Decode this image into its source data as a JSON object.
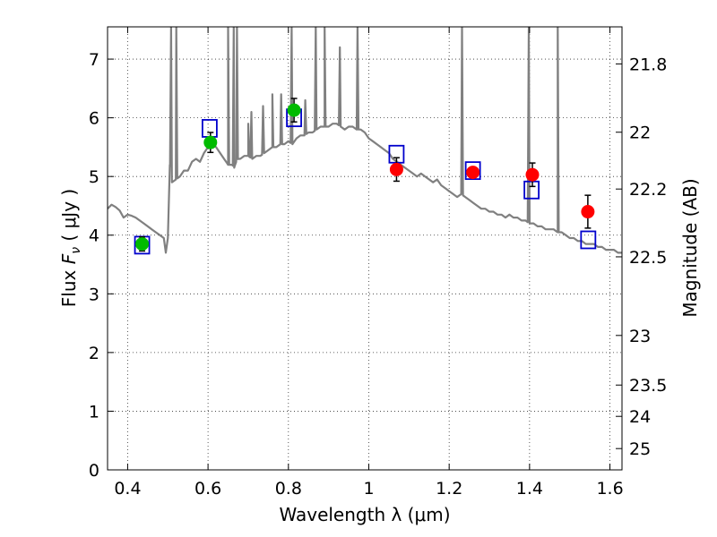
{
  "chart_data": {
    "type": "scatter",
    "xlabel": "Wavelength  λ (μm)",
    "ylabel": "Flux  F_ν  ( μJy )",
    "ylabel_parts": {
      "prefix": "Flux  ",
      "symbol": "F",
      "subscript": "ν",
      "suffix": "  ( μJy )"
    },
    "y2label": "Magnitude (AB)",
    "xlim": [
      0.35,
      1.63
    ],
    "ylim": [
      0,
      7.55
    ],
    "grid": true,
    "x_ticks": [
      0.4,
      0.6,
      0.8,
      1.0,
      1.2,
      1.4,
      1.6
    ],
    "x_tick_labels": [
      "0.4",
      "0.6",
      "0.8",
      "1",
      "1.2",
      "1.4",
      "1.6"
    ],
    "y_ticks": [
      0,
      1,
      2,
      3,
      4,
      5,
      6,
      7
    ],
    "y_tick_labels": [
      "0",
      "1",
      "2",
      "3",
      "4",
      "5",
      "6",
      "7"
    ],
    "y2_ticks": [
      21.8,
      22,
      22.2,
      22.5,
      23,
      23.5,
      24,
      25
    ],
    "y2_tick_labels": [
      "21.8",
      "22",
      "22.2",
      "22.5",
      "23",
      "23.5",
      "24",
      "25"
    ],
    "colors": {
      "spectrum": "#808080",
      "model": "#0000cc",
      "green": "#00bb00",
      "red": "#ff0000",
      "errorbar": "#000000"
    },
    "spectrum": {
      "x": [
        0.35,
        0.36,
        0.37,
        0.38,
        0.39,
        0.4,
        0.41,
        0.42,
        0.43,
        0.44,
        0.45,
        0.46,
        0.47,
        0.48,
        0.49,
        0.495,
        0.5,
        0.505,
        0.51,
        0.52,
        0.53,
        0.54,
        0.55,
        0.56,
        0.57,
        0.58,
        0.59,
        0.6,
        0.61,
        0.62,
        0.63,
        0.64,
        0.65,
        0.66,
        0.665,
        0.67,
        0.675,
        0.68,
        0.69,
        0.7,
        0.71,
        0.72,
        0.73,
        0.74,
        0.75,
        0.76,
        0.77,
        0.78,
        0.79,
        0.8,
        0.81,
        0.82,
        0.83,
        0.84,
        0.85,
        0.86,
        0.87,
        0.88,
        0.89,
        0.9,
        0.91,
        0.92,
        0.93,
        0.94,
        0.95,
        0.96,
        0.97,
        0.98,
        0.99,
        1.0,
        1.01,
        1.02,
        1.03,
        1.04,
        1.05,
        1.06,
        1.07,
        1.08,
        1.09,
        1.1,
        1.11,
        1.12,
        1.13,
        1.14,
        1.15,
        1.16,
        1.17,
        1.18,
        1.19,
        1.2,
        1.21,
        1.22,
        1.23,
        1.24,
        1.25,
        1.26,
        1.27,
        1.28,
        1.29,
        1.3,
        1.31,
        1.32,
        1.33,
        1.34,
        1.35,
        1.36,
        1.37,
        1.38,
        1.39,
        1.4,
        1.41,
        1.42,
        1.43,
        1.44,
        1.45,
        1.46,
        1.47,
        1.48,
        1.49,
        1.5,
        1.51,
        1.52,
        1.53,
        1.54,
        1.55,
        1.56,
        1.57,
        1.58,
        1.59,
        1.6,
        1.61,
        1.62,
        1.63
      ],
      "y": [
        4.45,
        4.52,
        4.48,
        4.42,
        4.3,
        4.35,
        4.33,
        4.3,
        4.25,
        4.2,
        4.15,
        4.1,
        4.05,
        4.0,
        3.95,
        3.7,
        3.95,
        5.2,
        4.9,
        4.95,
        5.0,
        5.1,
        5.1,
        5.25,
        5.3,
        5.25,
        5.4,
        5.5,
        5.55,
        5.5,
        5.4,
        5.3,
        5.2,
        5.2,
        5.15,
        5.25,
        5.3,
        5.3,
        5.35,
        5.35,
        5.3,
        5.35,
        5.35,
        5.4,
        5.45,
        5.5,
        5.5,
        5.55,
        5.55,
        5.6,
        5.55,
        5.65,
        5.7,
        5.7,
        5.75,
        5.75,
        5.8,
        5.85,
        5.85,
        5.85,
        5.9,
        5.9,
        5.85,
        5.8,
        5.85,
        5.85,
        5.8,
        5.8,
        5.75,
        5.65,
        5.6,
        5.55,
        5.5,
        5.45,
        5.4,
        5.3,
        5.25,
        5.2,
        5.15,
        5.1,
        5.05,
        5.0,
        5.05,
        5.0,
        4.95,
        4.9,
        4.95,
        4.85,
        4.8,
        4.75,
        4.7,
        4.65,
        4.7,
        4.65,
        4.6,
        4.55,
        4.5,
        4.45,
        4.45,
        4.4,
        4.4,
        4.35,
        4.35,
        4.3,
        4.35,
        4.3,
        4.3,
        4.25,
        4.25,
        4.2,
        4.2,
        4.15,
        4.15,
        4.1,
        4.1,
        4.1,
        4.05,
        4.05,
        4.0,
        3.95,
        3.95,
        3.9,
        3.9,
        3.85,
        3.85,
        3.85,
        3.8,
        3.8,
        3.75,
        3.75,
        3.75,
        3.7,
        3.7
      ]
    },
    "emission_spikes": [
      {
        "x": 0.508,
        "peak": 7.55
      },
      {
        "x": 0.521,
        "peak": 7.55
      },
      {
        "x": 0.65,
        "peak": 7.55
      },
      {
        "x": 0.664,
        "peak": 7.55
      },
      {
        "x": 0.672,
        "peak": 7.55
      },
      {
        "x": 0.7,
        "peak": 5.9
      },
      {
        "x": 0.708,
        "peak": 6.1
      },
      {
        "x": 0.737,
        "peak": 6.2
      },
      {
        "x": 0.76,
        "peak": 6.4
      },
      {
        "x": 0.782,
        "peak": 6.4
      },
      {
        "x": 0.808,
        "peak": 7.55
      },
      {
        "x": 0.842,
        "peak": 6.3
      },
      {
        "x": 0.868,
        "peak": 7.55
      },
      {
        "x": 0.89,
        "peak": 7.55
      },
      {
        "x": 0.928,
        "peak": 7.2
      },
      {
        "x": 0.972,
        "peak": 7.55
      },
      {
        "x": 1.232,
        "peak": 7.55
      },
      {
        "x": 1.398,
        "peak": 7.55
      },
      {
        "x": 1.47,
        "peak": 7.55
      }
    ],
    "model_points": {
      "x": [
        0.436,
        0.604,
        0.814,
        1.069,
        1.259,
        1.405,
        1.546
      ],
      "y": [
        3.83,
        5.82,
        6.0,
        5.38,
        5.1,
        4.77,
        3.92
      ]
    },
    "measured_points": {
      "x": [
        0.436,
        0.606,
        0.814,
        1.069,
        1.259,
        1.407,
        1.545
      ],
      "y": [
        3.85,
        5.58,
        6.13,
        5.12,
        5.07,
        5.03,
        4.4
      ],
      "yerr": [
        0.12,
        0.17,
        0.2,
        0.2,
        0.08,
        0.2,
        0.28
      ],
      "color": [
        "green",
        "green",
        "green",
        "red",
        "red",
        "red",
        "red"
      ]
    }
  }
}
